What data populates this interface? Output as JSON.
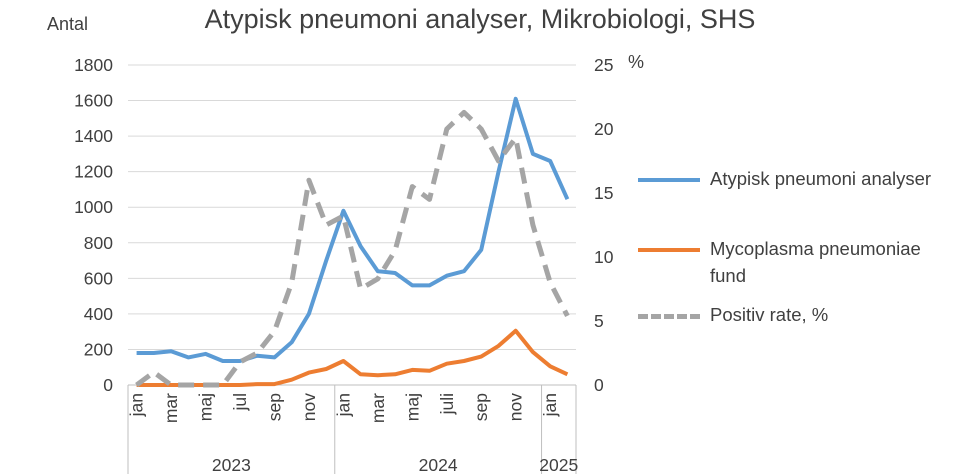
{
  "chart_data": {
    "type": "line",
    "title": "Atypisk pneumoni analyser, Mikrobiologi, SHS",
    "ylabel": "Antal",
    "y2label": "%",
    "ylim": [
      0,
      1800
    ],
    "yticks": [
      0,
      200,
      400,
      600,
      800,
      1000,
      1200,
      1400,
      1600,
      1800
    ],
    "y2lim": [
      0,
      25
    ],
    "y2ticks": [
      0,
      5,
      10,
      15,
      20,
      25
    ],
    "grid": true,
    "legend": "right",
    "x_labels": [
      "jan",
      "",
      "mar",
      "",
      "maj",
      "",
      "jul",
      "",
      "sep",
      "",
      "nov",
      "",
      "jan",
      "",
      "mar",
      "",
      "maj",
      "",
      "juli",
      "",
      "sep",
      "",
      "nov",
      "",
      "jan",
      ""
    ],
    "years": [
      {
        "label": "2023",
        "start": 0,
        "count": 12
      },
      {
        "label": "2024",
        "start": 12,
        "count": 12
      },
      {
        "label": "2025",
        "start": 24,
        "count": 2
      }
    ],
    "series": [
      {
        "name": "Atypisk pneumoni analyser",
        "axis": "left",
        "color": "#5B9BD5",
        "style": "solid",
        "values": [
          180,
          180,
          190,
          155,
          175,
          135,
          135,
          165,
          155,
          240,
          400,
          700,
          980,
          780,
          640,
          630,
          560,
          560,
          615,
          640,
          760,
          1200,
          1610,
          1300,
          1260,
          1045
        ]
      },
      {
        "name": "Mycoplasma pneumoniae fund",
        "axis": "left",
        "color": "#ED7D31",
        "style": "solid",
        "values": [
          0,
          0,
          0,
          0,
          0,
          0,
          0,
          5,
          5,
          30,
          70,
          90,
          135,
          60,
          55,
          60,
          85,
          80,
          120,
          135,
          160,
          220,
          305,
          185,
          105,
          60
        ]
      },
      {
        "name": "Positiv rate, %",
        "axis": "right",
        "color": "#A5A5A5",
        "style": "dashed",
        "values": [
          0,
          1,
          0,
          0,
          0,
          0,
          1.8,
          2.5,
          4.2,
          8,
          16,
          12.5,
          13.2,
          7.5,
          8.3,
          10.5,
          15.5,
          14.5,
          20,
          21.3,
          20,
          17.5,
          19.3,
          12.5,
          8,
          5.4
        ]
      }
    ]
  }
}
